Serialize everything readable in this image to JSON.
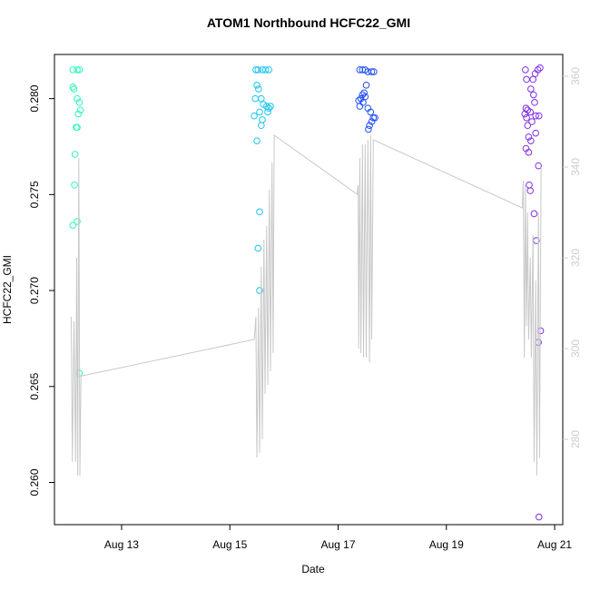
{
  "chart_data": {
    "type": "scatter",
    "title": "ATOM1 Northbound HCFC22_GMI",
    "x_label": "Date",
    "y_label": "HCFC22_GMI",
    "xlim": [
      11.76,
      21.15
    ],
    "ylim": [
      0.2578,
      0.2823
    ],
    "y2lim": [
      261.2,
      364.8
    ],
    "xticks": [
      {
        "value": 13,
        "label": "Aug 13"
      },
      {
        "value": 15,
        "label": "Aug 15"
      },
      {
        "value": 17,
        "label": "Aug 17"
      },
      {
        "value": 19,
        "label": "Aug 19"
      },
      {
        "value": 21,
        "label": "Aug 21"
      }
    ],
    "yticks": [
      {
        "value": 0.26,
        "label": "0.260"
      },
      0.265,
      {
        "value": 0.27,
        "label": "0.270"
      },
      0.275,
      {
        "value": 0.28,
        "label": "0.280"
      }
    ],
    "y2ticks": [
      280,
      300,
      320,
      340,
      360
    ],
    "y2color": "#cccccc",
    "series": [
      {
        "type": "scatter",
        "color": "#33f5c0",
        "x": [
          12.1,
          12.18,
          12.22,
          12.1,
          12.12,
          12.18,
          12.22,
          12.24,
          12.2,
          12.16,
          12.18,
          12.14,
          12.13,
          12.18,
          12.1,
          12.22
        ],
        "values": [
          0.2815,
          0.2815,
          0.2815,
          0.2806,
          0.2805,
          0.28,
          0.2798,
          0.2794,
          0.2792,
          0.2785,
          0.2785,
          0.2771,
          0.2755,
          0.2736,
          0.2734,
          0.2657
        ]
      },
      {
        "type": "scatter",
        "color": "#1cc4f0",
        "x": [
          15.48,
          15.52,
          15.6,
          15.66,
          15.72,
          15.5,
          15.53,
          15.47,
          15.58,
          15.62,
          15.68,
          15.72,
          15.75,
          15.7,
          15.55,
          15.45,
          15.6,
          15.58,
          15.5,
          15.55,
          15.52,
          15.55
        ],
        "values": [
          0.2815,
          0.2815,
          0.2815,
          0.2815,
          0.2815,
          0.2807,
          0.2805,
          0.28,
          0.28,
          0.2797,
          0.2796,
          0.2795,
          0.2796,
          0.2793,
          0.2793,
          0.2791,
          0.2789,
          0.2786,
          0.2778,
          0.2741,
          0.2722,
          0.27
        ]
      },
      {
        "type": "scatter",
        "color": "#2450f5",
        "x": [
          17.4,
          17.45,
          17.5,
          17.55,
          17.62,
          17.66,
          17.52,
          17.48,
          17.45,
          17.5,
          17.42,
          17.38,
          17.46,
          17.4,
          17.55,
          17.6,
          17.65,
          17.68,
          17.62,
          17.58,
          17.56
        ],
        "values": [
          0.2815,
          0.2815,
          0.2815,
          0.2814,
          0.2814,
          0.2814,
          0.2807,
          0.2803,
          0.2802,
          0.2801,
          0.28,
          0.2799,
          0.2798,
          0.2796,
          0.2795,
          0.2793,
          0.279,
          0.279,
          0.2788,
          0.2786,
          0.2784
        ]
      },
      {
        "type": "scatter",
        "color": "#8030e8",
        "x": [
          20.46,
          20.64,
          20.69,
          20.73,
          20.48,
          20.6,
          20.56,
          20.61,
          20.63,
          20.47,
          20.5,
          20.55,
          20.45,
          20.48,
          20.65,
          20.71,
          20.58,
          20.5,
          20.52,
          20.65,
          20.56,
          20.47,
          20.52,
          20.7,
          20.53,
          20.55,
          20.62,
          20.66,
          20.7,
          20.74,
          20.71
        ],
        "values": [
          0.2815,
          0.2813,
          0.2815,
          0.2816,
          0.281,
          0.281,
          0.2805,
          0.2802,
          0.2798,
          0.2795,
          0.2794,
          0.2793,
          0.2792,
          0.279,
          0.2791,
          0.2791,
          0.2788,
          0.2786,
          0.278,
          0.2782,
          0.2778,
          0.2774,
          0.2772,
          0.2765,
          0.2755,
          0.2752,
          0.274,
          0.2726,
          0.2673,
          0.2679,
          0.2582
        ]
      },
      {
        "type": "line",
        "axis": "y2",
        "color": "#c8c8c8",
        "x": [
          12.07,
          12.09,
          12.12,
          12.15,
          12.17,
          12.19,
          12.21,
          12.23,
          12.25,
          12.28,
          15.45,
          15.48,
          15.5,
          15.53,
          15.55,
          15.58,
          15.6,
          15.63,
          15.65,
          15.68,
          15.7,
          15.73,
          15.75,
          15.78,
          15.8,
          15.82,
          17.35,
          17.37,
          17.38,
          17.4,
          17.42,
          17.45,
          17.47,
          17.5,
          17.52,
          17.55,
          17.58,
          17.6,
          17.62,
          17.65,
          20.4,
          20.42,
          20.44,
          20.46,
          20.48,
          20.5,
          20.52,
          20.55,
          20.57,
          20.6,
          20.62,
          20.65,
          20.67,
          20.7,
          20.72,
          20.75
        ],
        "values": [
          307,
          275,
          306,
          275,
          320,
          272,
          342,
          272,
          294,
          294,
          302,
          307,
          276,
          309,
          277,
          318,
          280,
          324,
          290,
          327,
          292,
          335,
          295,
          341,
          299,
          347,
          334,
          336,
          300,
          342,
          299,
          345,
          298,
          345,
          298,
          346,
          297,
          347,
          302,
          346,
          331,
          337,
          298,
          336,
          305,
          330,
          302,
          320,
          298,
          325,
          275,
          315,
          272,
          330,
          276,
          340
        ]
      }
    ]
  }
}
